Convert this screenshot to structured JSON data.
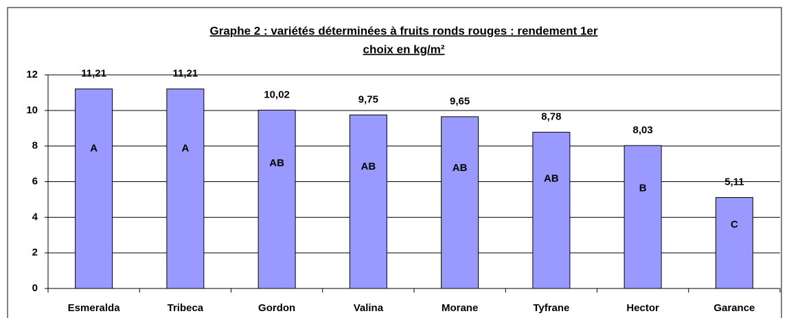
{
  "chart_data": {
    "type": "bar",
    "title": [
      "Graphe 2 : variétés déterminées à fruits ronds rouges : rendement 1er",
      "choix en kg/m²"
    ],
    "categories": [
      "Esmeralda",
      "Tribeca",
      "Gordon",
      "Valina",
      "Morane",
      "Tyfrane",
      "Hector",
      "Garance"
    ],
    "values": [
      11.21,
      11.21,
      10.02,
      9.75,
      9.65,
      8.78,
      8.03,
      5.11
    ],
    "value_labels": [
      "11,21",
      "11,21",
      "10,02",
      "9,75",
      "9,65",
      "8,78",
      "8,03",
      "5,11"
    ],
    "groups": [
      "A",
      "A",
      "AB",
      "AB",
      "AB",
      "AB",
      "B",
      "C"
    ],
    "color": "#9999ff",
    "ylim": [
      0,
      12
    ],
    "yticks": [
      0,
      2,
      4,
      6,
      8,
      10,
      12
    ],
    "grid": true
  }
}
